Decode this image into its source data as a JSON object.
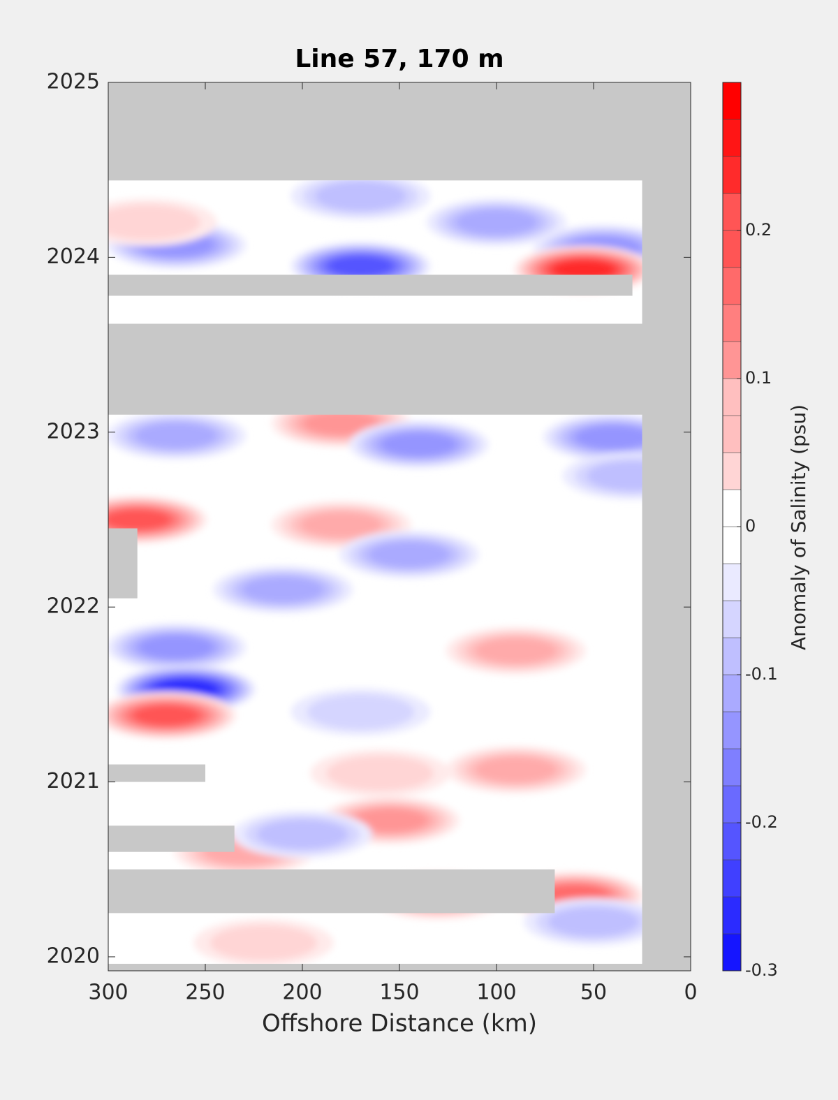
{
  "chart_data": {
    "type": "contour",
    "title": "Line 57, 170 m",
    "xlabel": "Offshore Distance (km)",
    "colorbar_label": "Anomaly of Salinity (psu)",
    "xlim": [
      300,
      0
    ],
    "xticks": [
      300,
      250,
      200,
      150,
      100,
      50,
      0
    ],
    "ylim": [
      2019.92,
      2025
    ],
    "yticks": [
      2020,
      2021,
      2022,
      2023,
      2024,
      2025
    ],
    "clim": [
      -0.3,
      0.3
    ],
    "cticks": [
      -0.3,
      -0.2,
      -0.1,
      0,
      0.1,
      0.2
    ],
    "level_step": 0.025,
    "positive_color": "#ff0000",
    "negative_color": "#0000ff",
    "missing_color": "#c8c8c8",
    "data_xlim": [
      300,
      25
    ],
    "data_ylim": [
      2019.96,
      2024.44
    ],
    "anomalies": [
      {
        "x": 170,
        "y": 2024.35,
        "value": -0.08
      },
      {
        "x": 100,
        "y": 2024.2,
        "value": -0.1
      },
      {
        "x": 45,
        "y": 2024.05,
        "value": -0.15
      },
      {
        "x": 265,
        "y": 2024.07,
        "value": -0.13
      },
      {
        "x": 170,
        "y": 2023.95,
        "value": -0.2
      },
      {
        "x": 55,
        "y": 2023.93,
        "value": 0.25
      },
      {
        "x": 280,
        "y": 2024.2,
        "value": 0.06
      },
      {
        "x": 180,
        "y": 2023.05,
        "value": 0.15
      },
      {
        "x": 140,
        "y": 2022.93,
        "value": -0.13
      },
      {
        "x": 40,
        "y": 2022.97,
        "value": -0.15
      },
      {
        "x": 265,
        "y": 2022.98,
        "value": -0.1
      },
      {
        "x": 285,
        "y": 2022.5,
        "value": 0.22
      },
      {
        "x": 180,
        "y": 2022.47,
        "value": 0.12
      },
      {
        "x": 145,
        "y": 2022.3,
        "value": -0.1
      },
      {
        "x": 210,
        "y": 2022.1,
        "value": -0.1
      },
      {
        "x": 90,
        "y": 2021.75,
        "value": 0.1
      },
      {
        "x": 265,
        "y": 2021.77,
        "value": -0.15
      },
      {
        "x": 260,
        "y": 2021.53,
        "value": -0.27
      },
      {
        "x": 270,
        "y": 2021.38,
        "value": 0.2
      },
      {
        "x": 160,
        "y": 2021.05,
        "value": 0.07
      },
      {
        "x": 90,
        "y": 2021.07,
        "value": 0.1
      },
      {
        "x": 155,
        "y": 2020.78,
        "value": 0.15
      },
      {
        "x": 230,
        "y": 2020.6,
        "value": 0.12
      },
      {
        "x": 60,
        "y": 2020.35,
        "value": 0.18
      },
      {
        "x": 130,
        "y": 2020.35,
        "value": 0.15
      },
      {
        "x": 50,
        "y": 2020.2,
        "value": -0.08
      },
      {
        "x": 220,
        "y": 2020.08,
        "value": 0.07
      },
      {
        "x": 170,
        "y": 2021.4,
        "value": -0.06
      },
      {
        "x": 30,
        "y": 2022.75,
        "value": -0.08
      },
      {
        "x": 200,
        "y": 2020.7,
        "value": -0.08
      }
    ],
    "gaps": [
      {
        "x": [
          300,
          25
        ],
        "y": [
          2023.1,
          2023.62
        ]
      },
      {
        "x": [
          300,
          30
        ],
        "y": [
          2023.78,
          2023.9
        ]
      },
      {
        "x": [
          300,
          285
        ],
        "y": [
          2022.05,
          2022.45
        ]
      },
      {
        "x": [
          300,
          250
        ],
        "y": [
          2021.0,
          2021.1
        ]
      },
      {
        "x": [
          300,
          235
        ],
        "y": [
          2020.6,
          2020.75
        ]
      },
      {
        "x": [
          300,
          70
        ],
        "y": [
          2020.25,
          2020.5
        ]
      }
    ]
  }
}
